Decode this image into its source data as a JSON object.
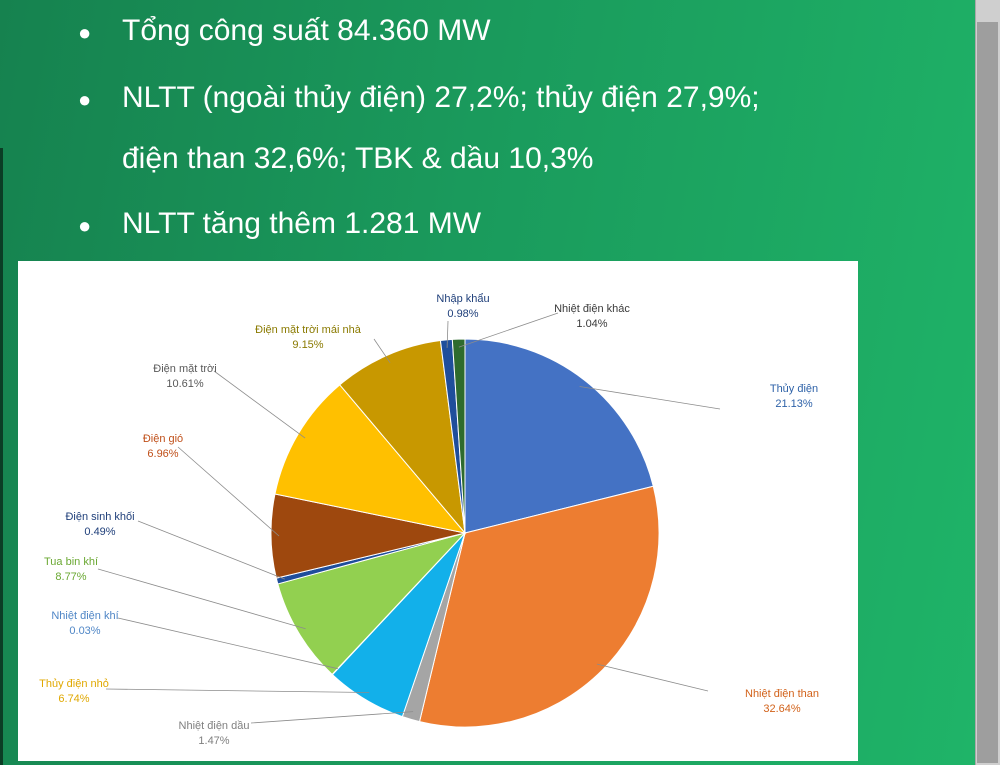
{
  "bullets": [
    {
      "text": "Tổng công suất 84.360 MW"
    },
    {
      "text": "NLTT (ngoài thủy điện) 27,2%; thủy điện 27,9%;"
    },
    {
      "text": "điện than 32,6%; TBK & dầu 10,3%"
    },
    {
      "text": "NLTT tăng thêm 1.281 MW"
    }
  ],
  "chart_data": {
    "type": "pie",
    "title": "",
    "slices": [
      {
        "name": "Thủy điện",
        "value": 21.13,
        "label": "21.13%",
        "color": "#4472c4",
        "label_color": "#2e62a8"
      },
      {
        "name": "Nhiệt điện than",
        "value": 32.64,
        "label": "32.64%",
        "color": "#ed7d31",
        "label_color": "#d2621a"
      },
      {
        "name": "Nhiệt điện dầu",
        "value": 1.47,
        "label": "1.47%",
        "color": "#a5a5a5",
        "label_color": "#7f7f7f"
      },
      {
        "name": "Thủy điện nhỏ",
        "value": 6.74,
        "label": "6.74%",
        "color": "#12b0ea",
        "label_color": "#e0a800"
      },
      {
        "name": "Nhiệt điện khí",
        "value": 0.03,
        "label": "0.03%",
        "color": "#5b9bd5",
        "label_color": "#4f86c6"
      },
      {
        "name": "Tua bin khí",
        "value": 8.77,
        "label": "8.77%",
        "color": "#92d050",
        "label_color": "#6aa832"
      },
      {
        "name": "Điện sinh khối",
        "value": 0.49,
        "label": "0.49%",
        "color": "#1f4e9b",
        "label_color": "#1f3f7a"
      },
      {
        "name": "Điện gió",
        "value": 6.96,
        "label": "6.96%",
        "color": "#9e480e",
        "label_color": "#c0501a"
      },
      {
        "name": "Điện mặt trời",
        "value": 10.61,
        "label": "10.61%",
        "color": "#ffc000",
        "label_color": "#595959"
      },
      {
        "name": "Điện mặt trời mái nhà",
        "value": 9.15,
        "label": "9.15%",
        "color": "#c89800",
        "label_color": "#8a7a00"
      },
      {
        "name": "Nhập khẩu",
        "value": 0.98,
        "label": "0.98%",
        "color": "#1f4e9b",
        "label_color": "#1f3f7a"
      },
      {
        "name": "Nhiệt điện khác",
        "value": 1.04,
        "label": "1.04%",
        "color": "#2e6b2e",
        "label_color": "#3a3a3a"
      }
    ]
  }
}
